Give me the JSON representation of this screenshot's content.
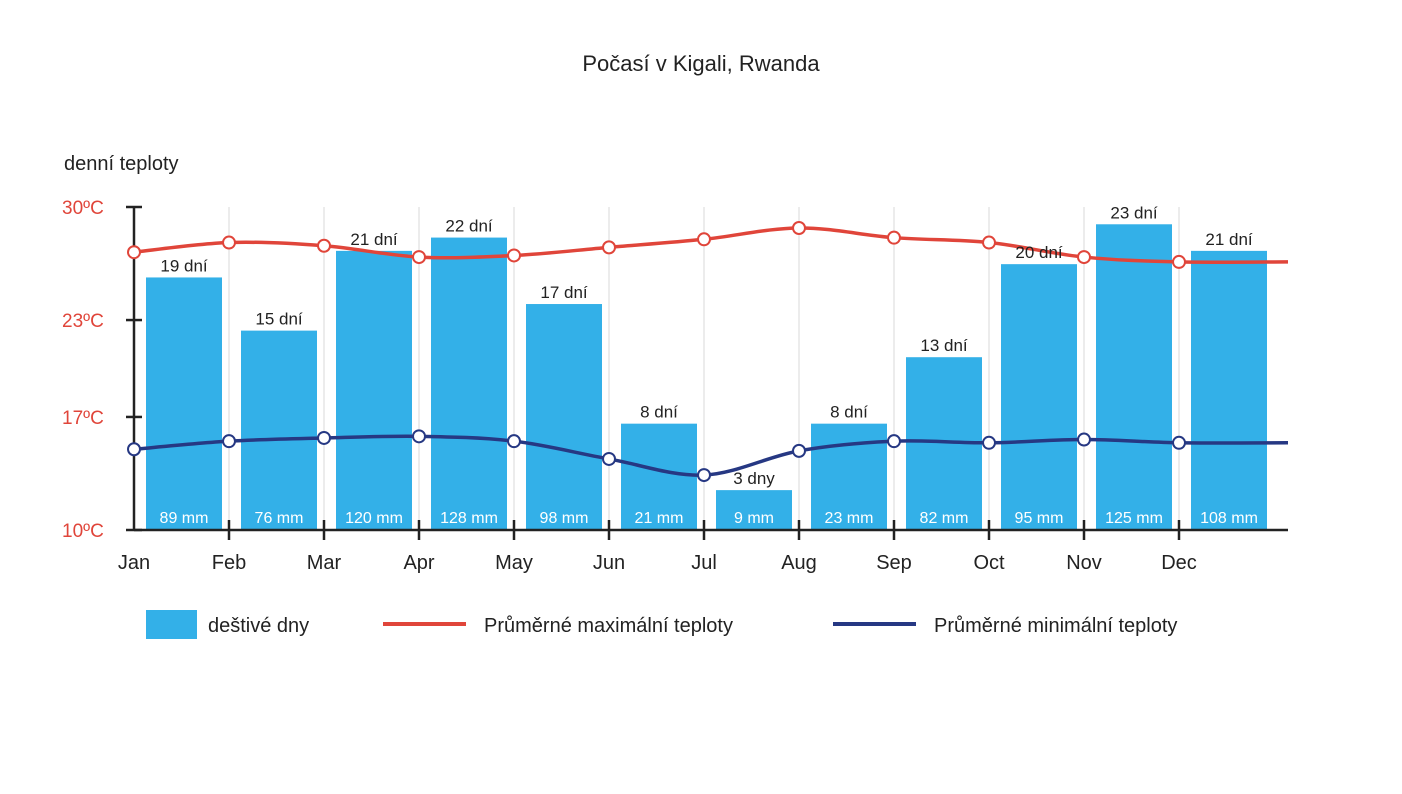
{
  "chart_data": {
    "type": "bar",
    "title": "Počasí v Kigali, Rwanda",
    "ylabel": "denní teploty",
    "ylim": [
      10,
      30
    ],
    "yticks": [
      {
        "value": 30,
        "label": "30ºC"
      },
      {
        "value": 23,
        "label": "23ºC"
      },
      {
        "value": 17,
        "label": "17ºC"
      },
      {
        "value": 10,
        "label": "10ºC"
      }
    ],
    "categories": [
      "Jan",
      "Feb",
      "Mar",
      "Apr",
      "May",
      "Jun",
      "Jul",
      "Aug",
      "Sep",
      "Oct",
      "Nov",
      "Dec"
    ],
    "series": [
      {
        "name": "deštivé dny",
        "type": "bar",
        "color": "#33b0e8",
        "rainy_days": [
          19,
          15,
          21,
          22,
          17,
          8,
          3,
          8,
          13,
          20,
          23,
          21
        ],
        "day_labels": [
          "19 dní",
          "15 dní",
          "21 dní",
          "22 dní",
          "17 dní",
          "8 dní",
          "3 dny",
          "8 dní",
          "13 dní",
          "20 dní",
          "23 dní",
          "21 dní"
        ],
        "precip_labels": [
          "89 mm",
          "76 mm",
          "120 mm",
          "128 mm",
          "98 mm",
          "21 mm",
          "9 mm",
          "23 mm",
          "82 mm",
          "95 mm",
          "125 mm",
          "108 mm"
        ]
      },
      {
        "name": "Průměrné maximální teploty",
        "type": "line",
        "color": "#e0453a",
        "values": [
          27.2,
          27.8,
          27.6,
          26.9,
          27.0,
          27.5,
          28.0,
          28.7,
          28.1,
          27.8,
          26.9,
          26.6
        ]
      },
      {
        "name": "Průměrné minimální teploty",
        "type": "line",
        "color": "#263883",
        "values": [
          15.0,
          15.5,
          15.7,
          15.8,
          15.5,
          14.4,
          13.4,
          14.9,
          15.5,
          15.4,
          15.6,
          15.4
        ]
      }
    ],
    "legend_position": "bottom",
    "grid": "vertical"
  }
}
